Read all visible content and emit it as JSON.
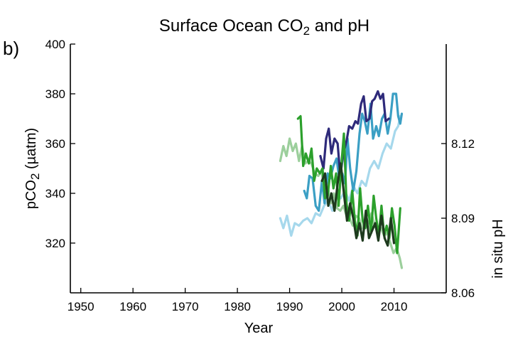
{
  "chart_data": {
    "type": "line",
    "panel_label": "b)",
    "title": {
      "base": "Surface Ocean CO",
      "sub": "2",
      "rest": " and pH"
    },
    "xlabel": "Year",
    "ylabel_left": {
      "base": "pCO",
      "sub": "2",
      "rest": " (µatm)"
    },
    "ylabel_right": "in situ pH",
    "xlim": [
      1948,
      2020
    ],
    "xticks": [
      1950,
      1960,
      1970,
      1980,
      1990,
      2000,
      2010
    ],
    "ylim_left": [
      300,
      400
    ],
    "yticks_left": [
      320,
      340,
      360,
      380,
      400
    ],
    "ylim_right": [
      8.06,
      8.16
    ],
    "yticks_right": [
      "8.06",
      "8.09",
      "8.12"
    ],
    "yticks_right_values": [
      8.06,
      8.09,
      8.12
    ],
    "series": [
      {
        "axis": "left",
        "color": "#a6d8ec",
        "points": [
          [
            1988.2,
            330
          ],
          [
            1988.8,
            326
          ],
          [
            1989.5,
            331
          ],
          [
            1990.3,
            323
          ],
          [
            1991,
            328
          ],
          [
            1991.8,
            327
          ],
          [
            1992.6,
            329
          ],
          [
            1993.4,
            330
          ],
          [
            1994.2,
            328
          ],
          [
            1995,
            332
          ],
          [
            1995.8,
            331
          ],
          [
            1996.6,
            335
          ],
          [
            1997.4,
            337
          ],
          [
            1998.2,
            333
          ],
          [
            1999,
            340
          ],
          [
            1999.8,
            338
          ],
          [
            2000.6,
            341
          ],
          [
            2001.4,
            337
          ],
          [
            2002.2,
            343
          ],
          [
            2003,
            340
          ],
          [
            2003.8,
            345
          ],
          [
            2004.6,
            343
          ],
          [
            2005.4,
            350
          ],
          [
            2006.2,
            353
          ],
          [
            2007,
            350
          ],
          [
            2007.8,
            356
          ],
          [
            2008.6,
            360
          ],
          [
            2009.4,
            358
          ],
          [
            2010.2,
            365
          ],
          [
            2010.8,
            367
          ],
          [
            2011.2,
            371
          ]
        ]
      },
      {
        "axis": "left",
        "color": "#3b9fc4",
        "points": [
          [
            1992.8,
            341
          ],
          [
            1993.3,
            338
          ],
          [
            1993.8,
            347
          ],
          [
            1994.4,
            346
          ],
          [
            1995,
            335
          ],
          [
            1995.6,
            333
          ],
          [
            1996.2,
            345
          ],
          [
            1996.7,
            336
          ],
          [
            1997.3,
            348
          ],
          [
            1997.8,
            346
          ],
          [
            1998.4,
            351
          ],
          [
            1999,
            354
          ],
          [
            1999.5,
            346
          ],
          [
            2000.1,
            348
          ],
          [
            2000.6,
            344
          ],
          [
            2001.1,
            362
          ],
          [
            2001.6,
            350
          ],
          [
            2002.2,
            341
          ],
          [
            2002.8,
            349
          ],
          [
            2003.4,
            364
          ],
          [
            2003.9,
            372
          ],
          [
            2004.4,
            369
          ],
          [
            2004.9,
            364
          ],
          [
            2005.5,
            376
          ],
          [
            2006,
            362
          ],
          [
            2006.6,
            367
          ],
          [
            2007.1,
            363
          ],
          [
            2007.7,
            370
          ],
          [
            2008.2,
            372
          ],
          [
            2008.8,
            364
          ],
          [
            2009.3,
            370
          ],
          [
            2009.8,
            380
          ],
          [
            2010.4,
            380
          ],
          [
            2010.8,
            371
          ],
          [
            2011.2,
            368
          ],
          [
            2011.5,
            372
          ]
        ]
      },
      {
        "axis": "left",
        "color": "#2e2a7a",
        "points": [
          [
            1995.9,
            355
          ],
          [
            1996.5,
            350
          ],
          [
            1997,
            362
          ],
          [
            1997.5,
            366
          ],
          [
            1998,
            356
          ],
          [
            1998.6,
            362
          ],
          [
            1999.2,
            360
          ],
          [
            1999.7,
            347
          ],
          [
            2000.3,
            356
          ],
          [
            2000.9,
            361
          ],
          [
            2001.4,
            367
          ],
          [
            2002,
            366
          ],
          [
            2002.6,
            369
          ],
          [
            2003.1,
            368
          ],
          [
            2003.7,
            376
          ],
          [
            2004.2,
            379
          ],
          [
            2004.7,
            369
          ],
          [
            2005.3,
            370
          ],
          [
            2005.8,
            377
          ],
          [
            2006.3,
            378
          ],
          [
            2006.9,
            381
          ],
          [
            2007.4,
            378
          ],
          [
            2007.9,
            380
          ],
          [
            2008.4,
            369
          ],
          [
            2009,
            370
          ]
        ]
      },
      {
        "axis": "right",
        "color": "#9ccf9c",
        "points": [
          [
            1988.2,
            8.113
          ],
          [
            1988.8,
            8.119
          ],
          [
            1989.4,
            8.115
          ],
          [
            1990,
            8.122
          ],
          [
            1990.6,
            8.117
          ],
          [
            1991.2,
            8.12
          ],
          [
            1991.8,
            8.113
          ],
          [
            1992.4,
            8.119
          ],
          [
            1993,
            8.112
          ],
          [
            1993.6,
            8.113
          ],
          [
            1994.2,
            8.112
          ],
          [
            1994.8,
            8.108
          ],
          [
            1995.5,
            8.107
          ],
          [
            1996.1,
            8.109
          ],
          [
            1996.7,
            8.101
          ],
          [
            1997.3,
            8.103
          ],
          [
            1997.9,
            8.096
          ],
          [
            1998.5,
            8.1
          ],
          [
            1999.1,
            8.094
          ],
          [
            1999.7,
            8.093
          ],
          [
            2000.3,
            8.095
          ],
          [
            2000.9,
            8.091
          ],
          [
            2001.5,
            8.09
          ],
          [
            2002.1,
            8.087
          ],
          [
            2002.7,
            8.091
          ],
          [
            2003.3,
            8.09
          ],
          [
            2003.9,
            8.086
          ],
          [
            2004.5,
            8.089
          ],
          [
            2005.1,
            8.088
          ],
          [
            2005.7,
            8.092
          ],
          [
            2006.3,
            8.087
          ],
          [
            2006.9,
            8.085
          ],
          [
            2007.5,
            8.086
          ],
          [
            2008.1,
            8.083
          ],
          [
            2008.7,
            8.084
          ],
          [
            2009.3,
            8.08
          ],
          [
            2009.9,
            8.076
          ],
          [
            2010.5,
            8.078
          ],
          [
            2011.1,
            8.074
          ],
          [
            2011.5,
            8.07
          ]
        ]
      },
      {
        "axis": "right",
        "color": "#2ca02c",
        "points": [
          [
            1991.6,
            8.13
          ],
          [
            1992.1,
            8.131
          ],
          [
            1992.6,
            8.111
          ],
          [
            1993.1,
            8.116
          ],
          [
            1993.7,
            8.112
          ],
          [
            1994.2,
            8.118
          ],
          [
            1994.7,
            8.105
          ],
          [
            1995.2,
            8.11
          ],
          [
            1995.8,
            8.108
          ],
          [
            1996.3,
            8.11
          ],
          [
            1996.8,
            8.098
          ],
          [
            1997.3,
            8.099
          ],
          [
            1997.9,
            8.111
          ],
          [
            1998.4,
            8.102
          ],
          [
            1998.9,
            8.108
          ],
          [
            1999.4,
            8.095
          ],
          [
            1999.9,
            8.111
          ],
          [
            2000.4,
            8.124
          ],
          [
            2000.9,
            8.096
          ],
          [
            2001.4,
            8.089
          ],
          [
            2002,
            8.101
          ],
          [
            2002.5,
            8.089
          ],
          [
            2003,
            8.083
          ],
          [
            2003.5,
            8.102
          ],
          [
            2004,
            8.089
          ],
          [
            2004.5,
            8.086
          ],
          [
            2005,
            8.095
          ],
          [
            2005.6,
            8.084
          ],
          [
            2006.1,
            8.099
          ],
          [
            2006.6,
            8.09
          ],
          [
            2007.1,
            8.083
          ],
          [
            2007.6,
            8.095
          ],
          [
            2008.1,
            8.083
          ],
          [
            2008.6,
            8.087
          ],
          [
            2009.1,
            8.082
          ],
          [
            2009.6,
            8.094
          ],
          [
            2010.1,
            8.087
          ],
          [
            2010.6,
            8.076
          ],
          [
            2011.2,
            8.094
          ]
        ]
      },
      {
        "axis": "right",
        "color": "#1e3a1e",
        "points": [
          [
            1996.2,
            8.105
          ],
          [
            1996.8,
            8.108
          ],
          [
            1997.4,
            8.095
          ],
          [
            1998,
            8.1
          ],
          [
            1998.6,
            8.093
          ],
          [
            1999.2,
            8.104
          ],
          [
            1999.8,
            8.112
          ],
          [
            2000.4,
            8.1
          ],
          [
            2001,
            8.089
          ],
          [
            2001.6,
            8.096
          ],
          [
            2002.2,
            8.09
          ],
          [
            2002.8,
            8.082
          ],
          [
            2003.4,
            8.088
          ],
          [
            2004,
            8.081
          ],
          [
            2004.6,
            8.093
          ],
          [
            2005.2,
            8.082
          ],
          [
            2005.8,
            8.085
          ],
          [
            2006.4,
            8.088
          ],
          [
            2007,
            8.081
          ],
          [
            2007.6,
            8.091
          ],
          [
            2008.2,
            8.082
          ],
          [
            2008.8,
            8.079
          ],
          [
            2009.4,
            8.09
          ],
          [
            2010,
            8.08
          ]
        ]
      }
    ]
  }
}
